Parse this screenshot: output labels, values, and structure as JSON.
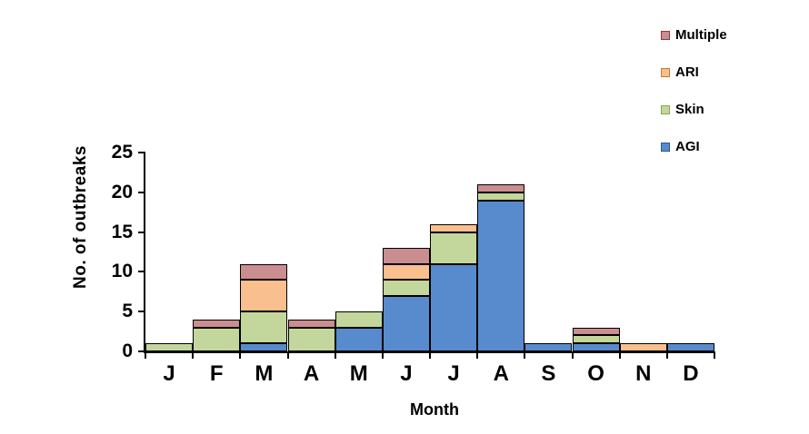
{
  "chart_data": {
    "type": "bar",
    "stacked": true,
    "title": "",
    "xlabel": "Month",
    "ylabel": "No. of outbreaks",
    "categories": [
      "J",
      "F",
      "M",
      "A",
      "M",
      "J",
      "J",
      "A",
      "S",
      "O",
      "N",
      "D"
    ],
    "series": [
      {
        "name": "AGI",
        "color": "#588BCD",
        "legend_border": "#2E558C",
        "values": [
          0,
          0,
          1,
          0,
          3,
          7,
          11,
          19,
          1,
          1,
          0,
          1
        ]
      },
      {
        "name": "Skin",
        "color": "#C3D69B",
        "legend_border": "#89A84F",
        "values": [
          1,
          3,
          4,
          3,
          2,
          2,
          4,
          1,
          0,
          1,
          0,
          0
        ]
      },
      {
        "name": "ARI",
        "color": "#FABF8F",
        "legend_border": "#C07B33",
        "values": [
          0,
          0,
          4,
          0,
          0,
          2,
          1,
          0,
          0,
          0,
          1,
          0
        ]
      },
      {
        "name": "Multiple",
        "color": "#CA8D90",
        "legend_border": "#953735",
        "values": [
          0,
          1,
          2,
          1,
          0,
          2,
          0,
          1,
          0,
          1,
          0,
          0
        ]
      }
    ],
    "totals_by_month": [
      1,
      4,
      11,
      4,
      5,
      13,
      16,
      21,
      1,
      3,
      1,
      1
    ],
    "ylim": [
      0,
      25
    ],
    "yticks": [
      0,
      5,
      10,
      15,
      20,
      25
    ],
    "bar_border_color": "#000000",
    "axis_color": "#000000",
    "background": "#FFFFFF",
    "grid": false,
    "legend": {
      "position": "top-right",
      "order": [
        "Multiple",
        "ARI",
        "Skin",
        "AGI"
      ]
    }
  }
}
